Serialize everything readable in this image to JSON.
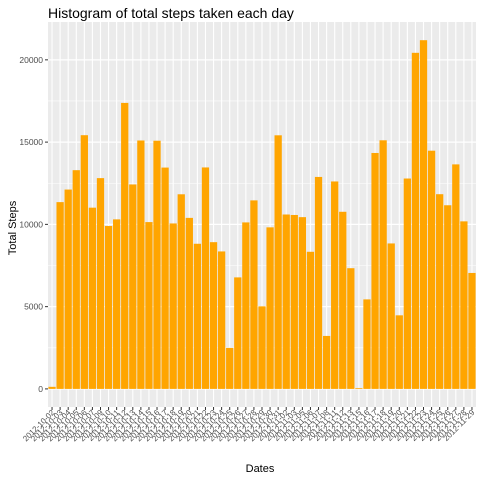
{
  "chart_data": {
    "type": "bar",
    "title": "Histogram of total steps taken each day",
    "xlabel": "Dates",
    "ylabel": "Total Steps",
    "ylim": [
      -1100,
      22300
    ],
    "yticks": [
      0,
      5000,
      10000,
      15000,
      20000
    ],
    "grid": true,
    "legend": "none",
    "bar_color": "#FFA500",
    "panel_color": "#EBEBEB",
    "categories": [
      "2012-10-02",
      "2012-10-03",
      "2012-10-04",
      "2012-10-05",
      "2012-10-06",
      "2012-10-07",
      "2012-10-09",
      "2012-10-10",
      "2012-10-11",
      "2012-10-12",
      "2012-10-13",
      "2012-10-14",
      "2012-10-15",
      "2012-10-16",
      "2012-10-17",
      "2012-10-18",
      "2012-10-19",
      "2012-10-20",
      "2012-10-21",
      "2012-10-22",
      "2012-10-23",
      "2012-10-24",
      "2012-10-25",
      "2012-10-26",
      "2012-10-27",
      "2012-10-28",
      "2012-10-29",
      "2012-10-30",
      "2012-10-31",
      "2012-11-02",
      "2012-11-03",
      "2012-11-05",
      "2012-11-06",
      "2012-11-07",
      "2012-11-08",
      "2012-11-11",
      "2012-11-12",
      "2012-11-13",
      "2012-11-15",
      "2012-11-16",
      "2012-11-17",
      "2012-11-18",
      "2012-11-19",
      "2012-11-20",
      "2012-11-21",
      "2012-11-22",
      "2012-11-23",
      "2012-11-24",
      "2012-11-25",
      "2012-11-26",
      "2012-11-27",
      "2012-11-28",
      "2012-11-29"
    ],
    "values": [
      126,
      11352,
      12116,
      13294,
      15420,
      11015,
      12811,
      9900,
      10304,
      17382,
      12426,
      15098,
      10139,
      15084,
      13452,
      10056,
      11829,
      10395,
      8821,
      13460,
      8918,
      8355,
      2492,
      6778,
      10119,
      11458,
      5018,
      9819,
      15414,
      10600,
      10571,
      10439,
      8334,
      12883,
      3219,
      12608,
      10765,
      7336,
      41,
      5441,
      14339,
      15110,
      8841,
      4472,
      12787,
      20427,
      21194,
      14478,
      11834,
      11162,
      13646,
      10183,
      7047
    ]
  }
}
